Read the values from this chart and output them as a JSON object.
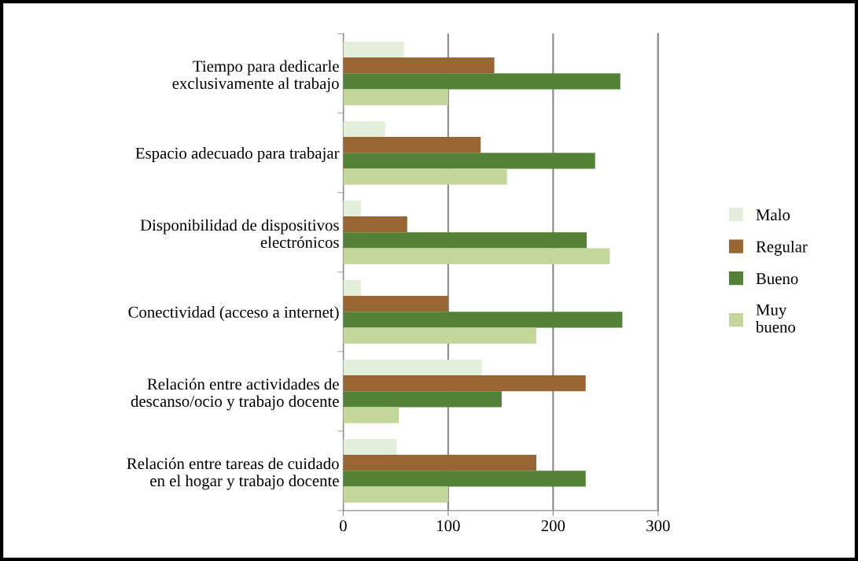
{
  "chart_data": {
    "type": "bar",
    "orientation": "horizontal",
    "categories": [
      "Tiempo para dedicarle\nexclusivamente al trabajo",
      "Espacio adecuado para trabajar",
      "Disponibilidad de dispositivos\nelectrónicos",
      "Conectividad (acceso a internet)",
      "Relación entre actividades de\ndescanso/ocio y trabajo docente",
      "Relación entre tareas de cuidado\nen el hogar y trabajo docente"
    ],
    "series": [
      {
        "name": "Malo",
        "color": "#e3efda",
        "values": [
          58,
          40,
          17,
          17,
          132,
          51
        ]
      },
      {
        "name": "Regular",
        "color": "#996633",
        "values": [
          144,
          131,
          61,
          100,
          231,
          184
        ]
      },
      {
        "name": "Bueno",
        "color": "#538135",
        "values": [
          264,
          240,
          232,
          266,
          151,
          231
        ]
      },
      {
        "name": "Muy\nbueno",
        "color": "#c4d79b",
        "values": [
          100,
          156,
          254,
          184,
          53,
          100
        ]
      }
    ],
    "xlim": [
      0,
      300
    ],
    "xticks": [
      0,
      100,
      200,
      300
    ],
    "grid": "x",
    "legend": "right"
  }
}
